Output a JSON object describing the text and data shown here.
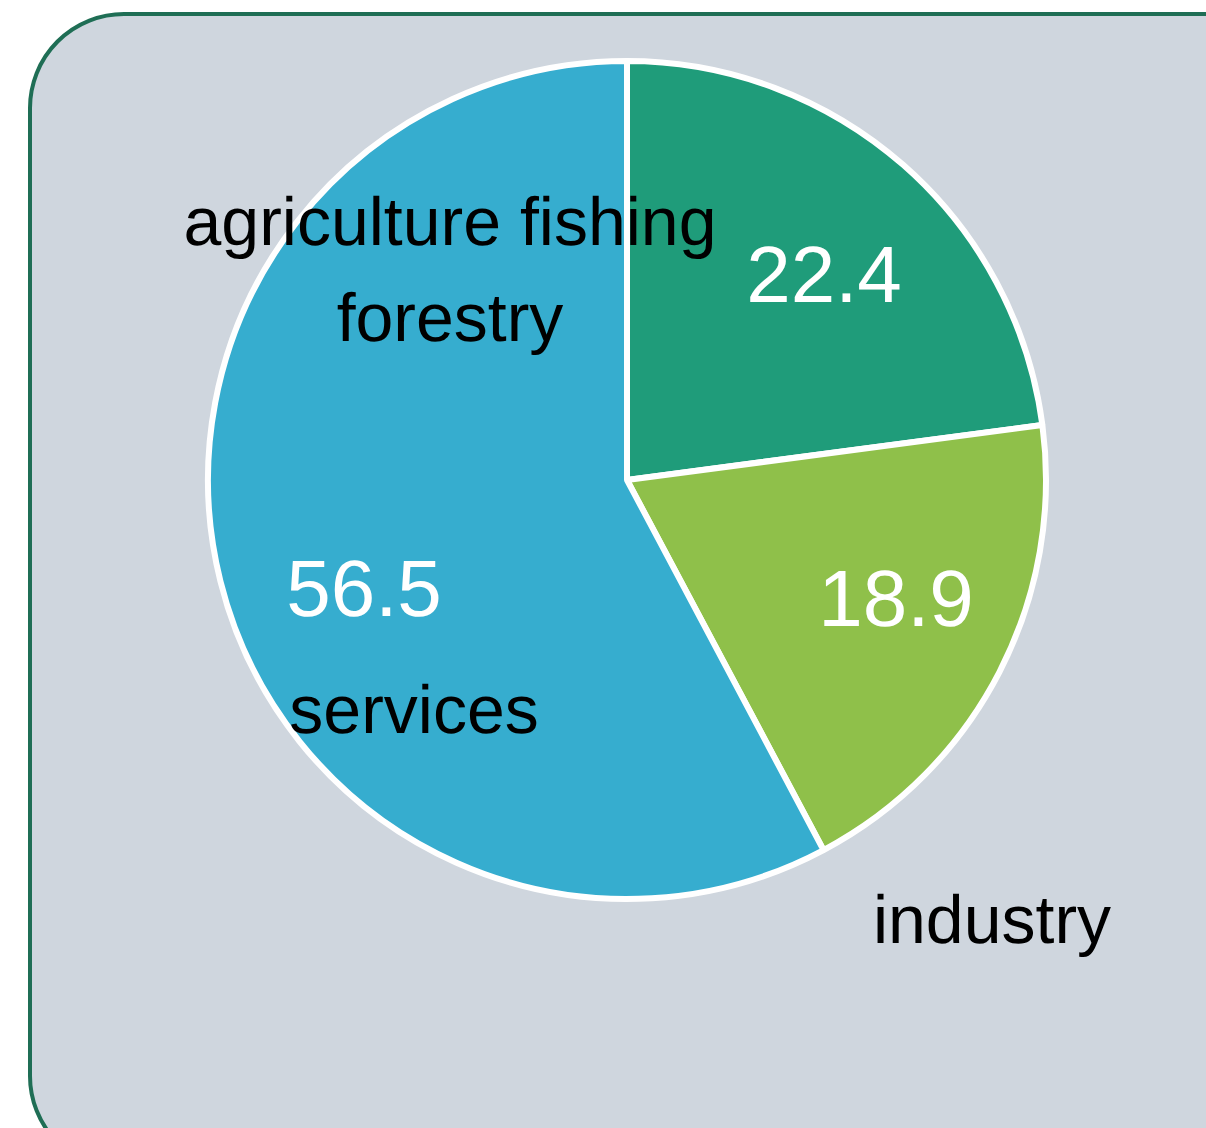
{
  "chart_data": {
    "type": "pie",
    "categories": [
      "agriculture fishing forestry",
      "industry",
      "services"
    ],
    "values": [
      22.4,
      18.9,
      56.5
    ],
    "colors": [
      "#1f9c7a",
      "#8fc04a",
      "#36adcf"
    ],
    "data_labels": true,
    "legend": false
  }
}
